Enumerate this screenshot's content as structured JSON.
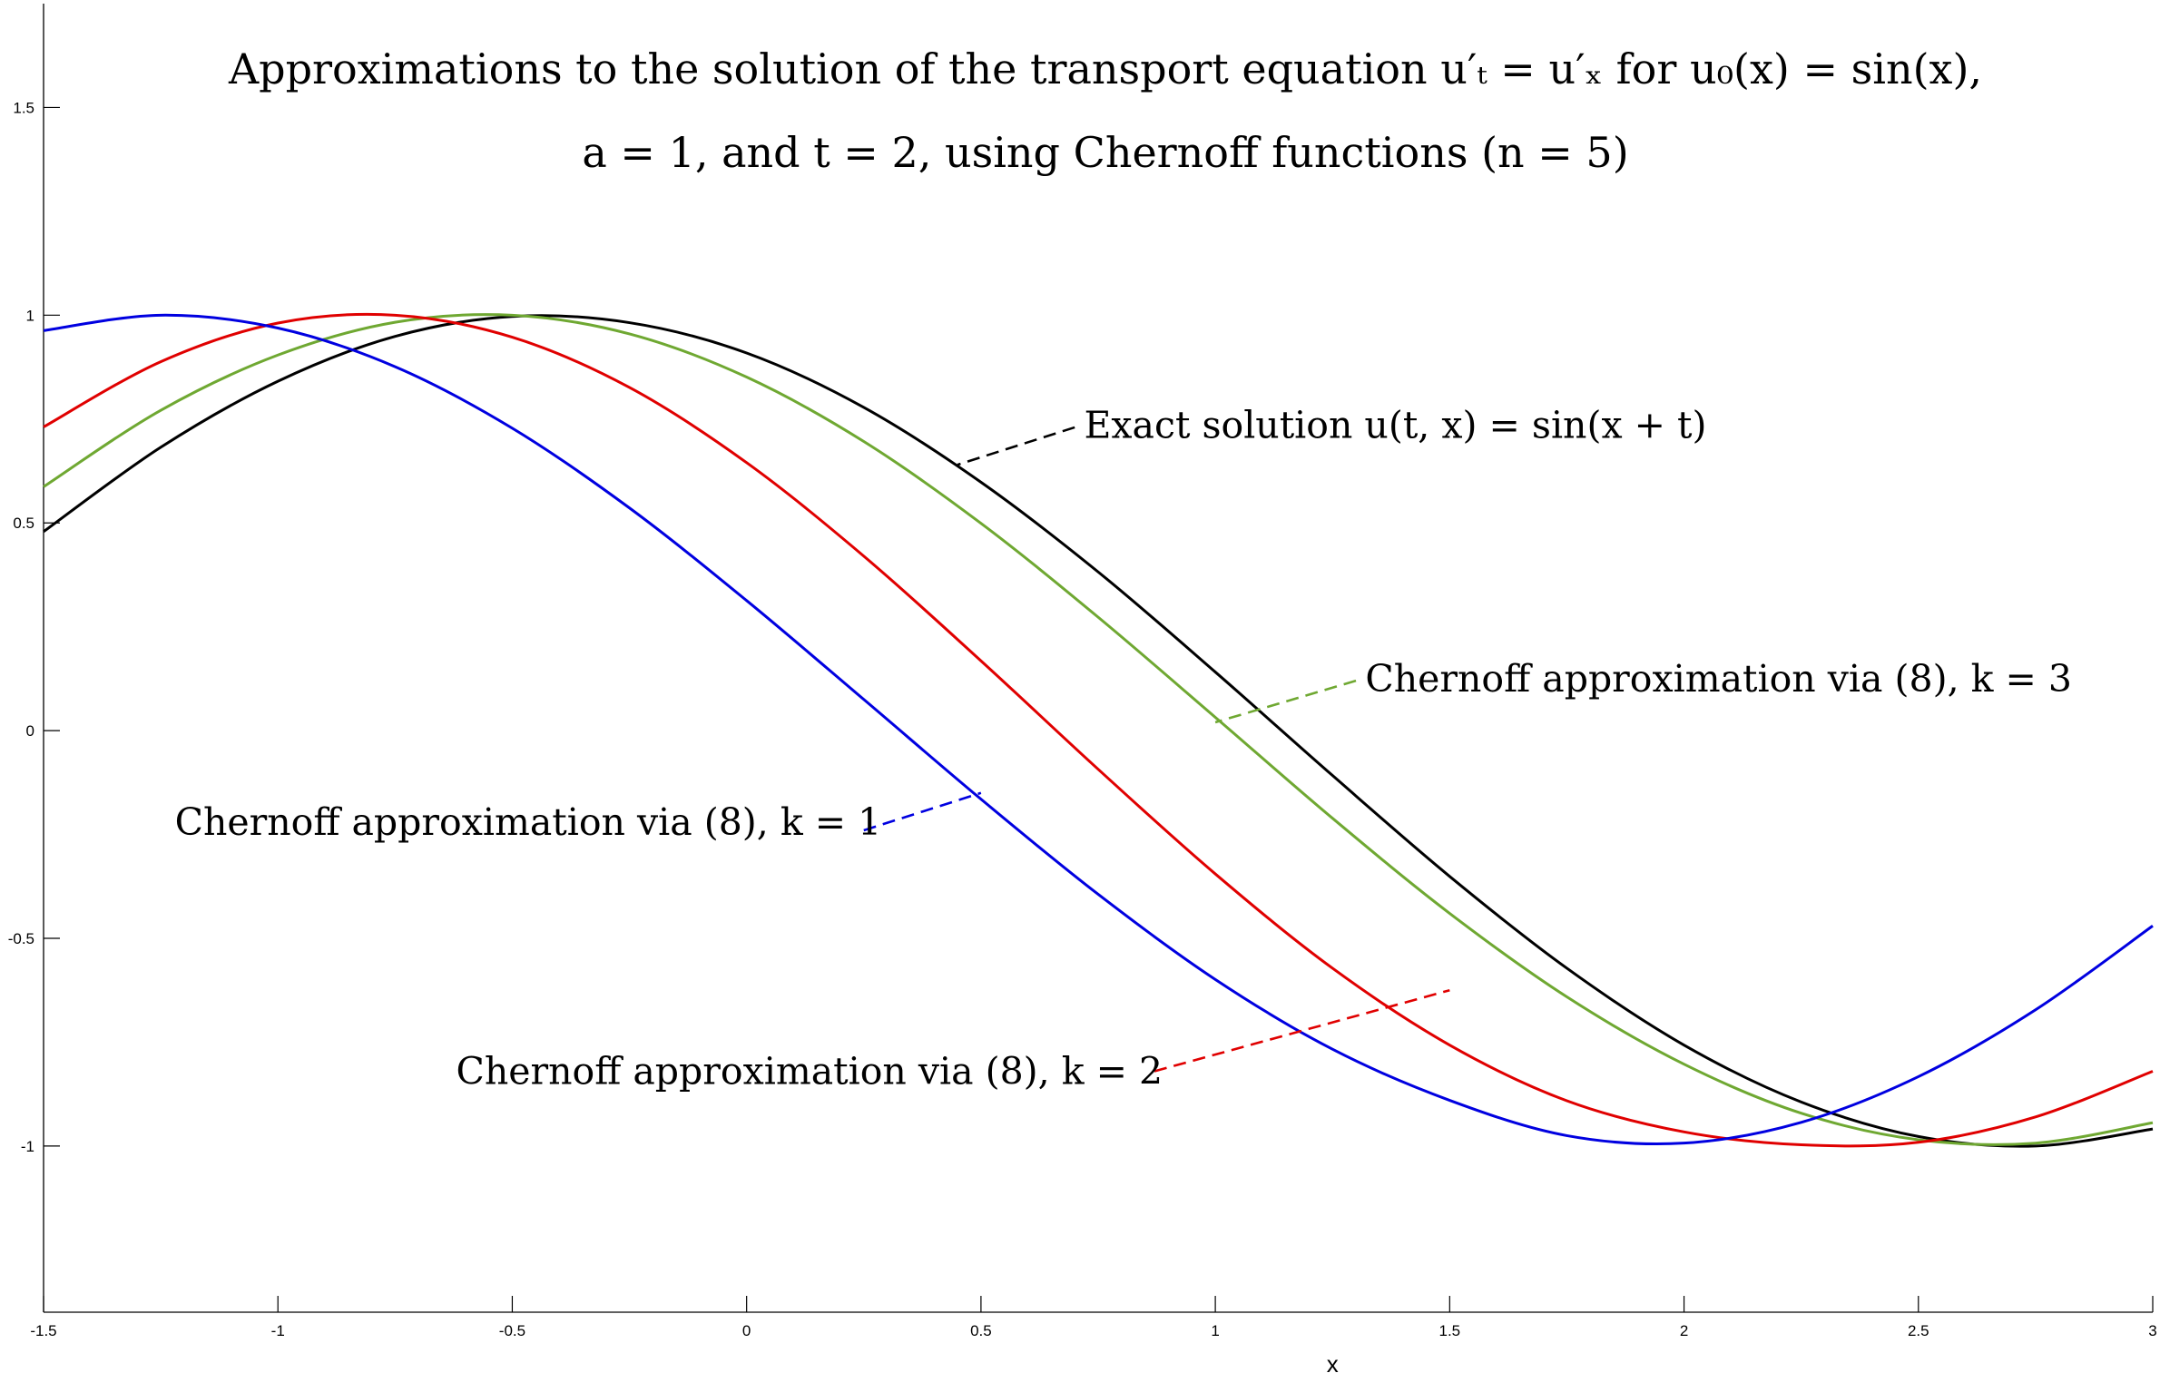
{
  "chart_data": {
    "type": "line",
    "title_line1": "Approximations to the solution of the transport equation u′ₜ = u′ₓ for u₀(x) = sin(x),",
    "title_line2": "a = 1, and t = 2, using Chernoff functions (n = 5)",
    "xlabel": "x",
    "ylabel": "",
    "xlim": [
      -1.5,
      3
    ],
    "ylim": [
      -1.4,
      1.75
    ],
    "x_ticks": [
      -1.5,
      -1,
      -0.5,
      0,
      0.5,
      1,
      1.5,
      2,
      2.5,
      3
    ],
    "x_tick_labels": [
      "-1.5",
      "-1",
      "-0.5",
      "0",
      "0.5",
      "1",
      "1.5",
      "2",
      "2.5",
      "3"
    ],
    "y_ticks": [
      -1,
      -0.5,
      0,
      0.5,
      1,
      1.5
    ],
    "y_tick_labels": [
      "-1",
      "-0.5",
      "0",
      "0.5",
      "1",
      "1.5"
    ],
    "grid": false,
    "legend": "none",
    "series": [
      {
        "color": "#000000",
        "x": [
          -1.5,
          -1.25,
          -1.0,
          -0.75,
          -0.5,
          -0.25,
          0.0,
          0.25,
          0.5,
          0.75,
          1.0,
          1.25,
          1.5,
          1.75,
          2.0,
          2.25,
          2.5,
          2.75,
          3.0
        ],
        "y": [
          0.479,
          0.682,
          0.841,
          0.949,
          0.997,
          0.982,
          0.909,
          0.778,
          0.598,
          0.382,
          0.141,
          -0.108,
          -0.351,
          -0.572,
          -0.757,
          -0.894,
          -0.977,
          -1.0,
          -0.959
        ]
      },
      {
        "color": "#6fa832",
        "x": [
          -1.5,
          -1.25,
          -1.0,
          -0.75,
          -0.5,
          -0.25,
          0.0,
          0.25,
          0.5,
          0.75,
          1.0,
          1.25,
          1.5,
          1.75,
          2.0,
          2.25,
          2.5,
          2.75,
          3.0
        ],
        "y": [
          0.587,
          0.771,
          0.904,
          0.983,
          1.0,
          0.955,
          0.851,
          0.696,
          0.499,
          0.273,
          0.032,
          -0.211,
          -0.44,
          -0.641,
          -0.803,
          -0.921,
          -0.985,
          -0.993,
          -0.944
        ]
      },
      {
        "color": "#e00000",
        "x": [
          -1.5,
          -1.25,
          -1.0,
          -0.75,
          -0.5,
          -0.25,
          0.0,
          0.25,
          0.5,
          0.75,
          1.0,
          1.25,
          1.5,
          1.75,
          2.0,
          2.25,
          2.5,
          2.75,
          3.0
        ],
        "y": [
          0.731,
          0.888,
          0.981,
          1.0,
          0.947,
          0.826,
          0.645,
          0.42,
          0.168,
          -0.093,
          -0.345,
          -0.572,
          -0.757,
          -0.891,
          -0.966,
          -0.997,
          -0.991,
          -0.93,
          -0.82
        ]
      },
      {
        "color": "#0000e0",
        "x": [
          -1.5,
          -1.25,
          -1.0,
          -0.75,
          -0.5,
          -0.25,
          0.0,
          0.25,
          0.5,
          0.75,
          1.0,
          1.25,
          1.5,
          1.75,
          2.0,
          2.25,
          2.5,
          2.75,
          3.0
        ],
        "y": [
          0.963,
          1.0,
          0.969,
          0.876,
          0.728,
          0.536,
          0.313,
          0.075,
          -0.165,
          -0.394,
          -0.599,
          -0.767,
          -0.89,
          -0.975,
          -0.993,
          -0.943,
          -0.833,
          -0.672,
          -0.47
        ]
      }
    ],
    "annotations": [
      {
        "text": "Exact solution u(t, x) = sin(x + t)",
        "color": "#000000",
        "text_x": 0.72,
        "text_y": 0.735,
        "line_from": [
          0.7,
          0.73
        ],
        "line_to": [
          0.45,
          0.64
        ]
      },
      {
        "text": "Chernoff approximation via (8), k = 3",
        "color": "#6fa832",
        "text_x": 1.32,
        "text_y": 0.125,
        "line_from": [
          1.3,
          0.12
        ],
        "line_to": [
          1.0,
          0.02
        ]
      },
      {
        "text": "Chernoff approximation via (8), k = 1",
        "color": "#0000e0",
        "text_x": -1.22,
        "text_y": -0.22,
        "line_from": [
          0.25,
          -0.24
        ],
        "line_to": [
          0.5,
          -0.15
        ]
      },
      {
        "text": "Chernoff approximation via (8), k = 2",
        "color": "#e00000",
        "text_x": -0.62,
        "text_y": -0.82,
        "line_from": [
          0.87,
          -0.82
        ],
        "line_to": [
          1.5,
          -0.625
        ]
      }
    ]
  }
}
